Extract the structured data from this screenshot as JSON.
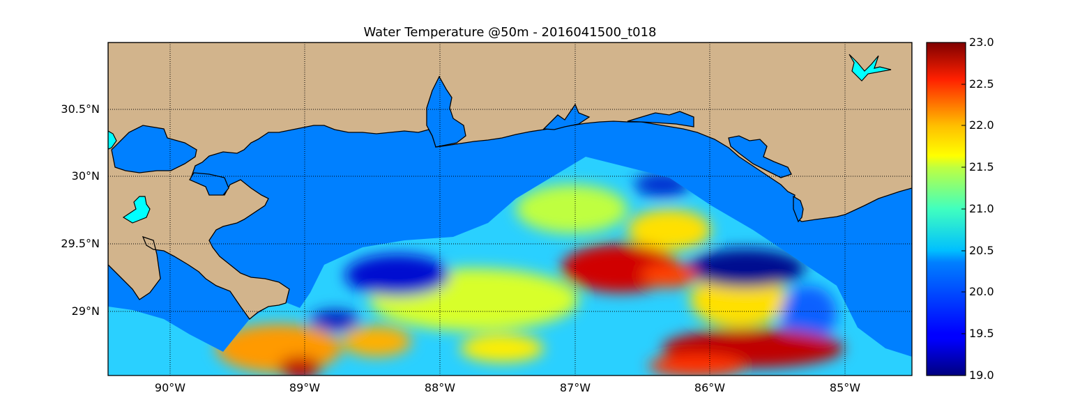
{
  "title": "Water Temperature @50m - 2016041500_t018",
  "lat_labels": [
    "30.5°N",
    "30°N",
    "29.5°N",
    "29°N"
  ],
  "lon_labels": [
    "90°W",
    "89°W",
    "88°W",
    "87°W",
    "86°W",
    "85°W"
  ],
  "colorbar_ticks": [
    "23.0",
    "22.5",
    "22.0",
    "21.5",
    "21.0",
    "20.5",
    "20.0",
    "19.5",
    "19.0"
  ],
  "colors": {
    "land": "#d2b48c",
    "water_no_data": "#0080ff",
    "inland_lake": "#00ffff"
  },
  "colormap": "jet",
  "colorbar_range": [
    19.0,
    23.0
  ],
  "map_extent": {
    "lon": [
      -90.5,
      -84.5
    ],
    "lat": [
      28.55,
      31.0
    ]
  },
  "grid": true,
  "chart_data": {
    "type": "heatmap",
    "title": "Water Temperature @50m - 2016041500_t018",
    "colormap": "jet",
    "vmin": 19.0,
    "vmax": 23.0,
    "xlim": [
      -90.5,
      -84.5
    ],
    "ylim": [
      28.55,
      31.0
    ],
    "features": [
      {
        "lon": -89.0,
        "lat": 28.7,
        "value": 22.6
      },
      {
        "lon": -89.3,
        "lat": 28.75,
        "value": 21.8
      },
      {
        "lon": -88.2,
        "lat": 29.25,
        "value": 19.2
      },
      {
        "lon": -88.7,
        "lat": 28.95,
        "value": 19.6
      },
      {
        "lon": -86.8,
        "lat": 29.4,
        "value": 22.9
      },
      {
        "lon": -86.5,
        "lat": 29.25,
        "value": 22.4
      },
      {
        "lon": -86.1,
        "lat": 28.8,
        "value": 22.9
      },
      {
        "lon": -85.7,
        "lat": 28.65,
        "value": 22.9
      },
      {
        "lon": -85.9,
        "lat": 29.4,
        "value": 19.1
      },
      {
        "lon": -86.35,
        "lat": 29.8,
        "value": 19.3
      },
      {
        "lon": -87.5,
        "lat": 29.1,
        "value": 21.3
      },
      {
        "lon": -87.3,
        "lat": 29.75,
        "value": 21.2
      },
      {
        "lon": -87.8,
        "lat": 28.8,
        "value": 21.6
      },
      {
        "lon": -84.9,
        "lat": 28.8,
        "value": 20.4
      }
    ]
  }
}
